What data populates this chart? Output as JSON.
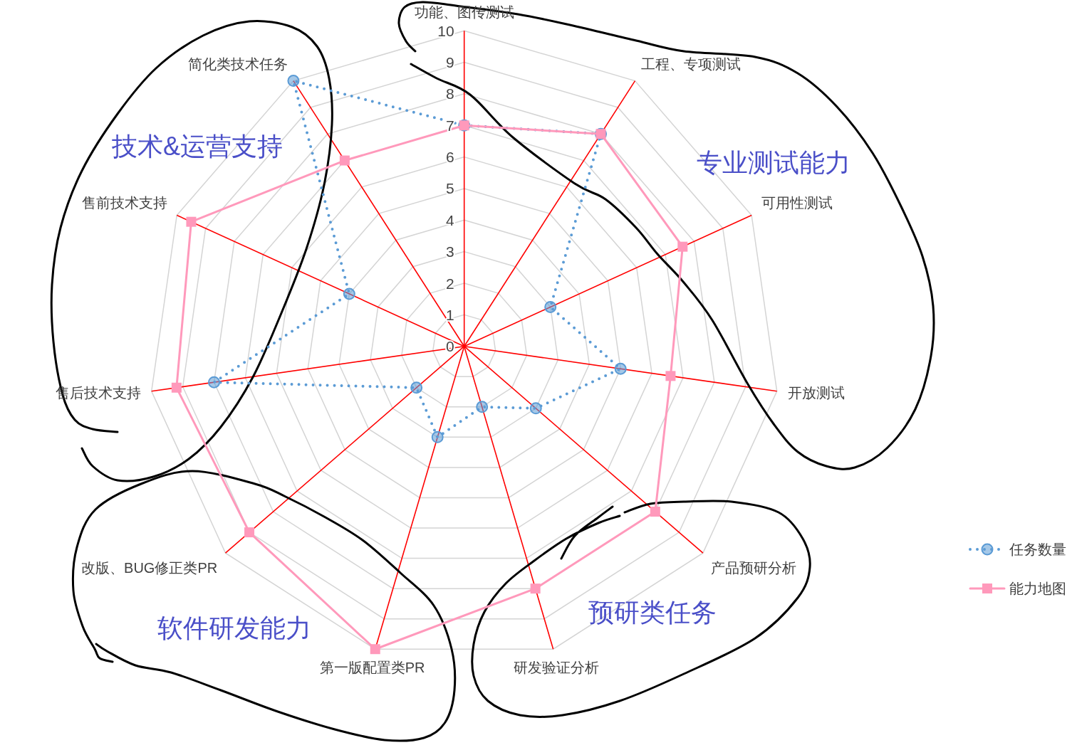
{
  "chart_data": {
    "type": "radar",
    "categories": [
      "功能、图传测试",
      "工程、专项测试",
      "可用性测试",
      "开放测试",
      "产品预研分析",
      "研发验证分析",
      "第一版配置类PR",
      "改版、BUG修正类PR",
      "售后技术支持",
      "售前技术支持",
      "简化类技术任务"
    ],
    "series": [
      {
        "name": "任务数量",
        "color": "#5b9bd5",
        "values": [
          7,
          8,
          3,
          5,
          3,
          2,
          3,
          2,
          8,
          4,
          10
        ],
        "marker": "circle",
        "line_style": "dotted"
      },
      {
        "name": "能力地图",
        "color": "#ff99bb",
        "values": [
          7,
          8,
          7.6,
          6.6,
          8,
          8,
          10,
          9,
          9.2,
          9.5,
          7
        ],
        "marker": "square",
        "line_style": "solid"
      }
    ],
    "ylim": [
      0,
      10
    ],
    "yticks": [
      0,
      1,
      2,
      3,
      4,
      5,
      6,
      7,
      8,
      9,
      10
    ],
    "grid": true,
    "legend": "bottom right",
    "annotations": [
      "技术&运营支持",
      "专业测试能力",
      "预研类任务",
      "软件研发能力"
    ]
  }
}
